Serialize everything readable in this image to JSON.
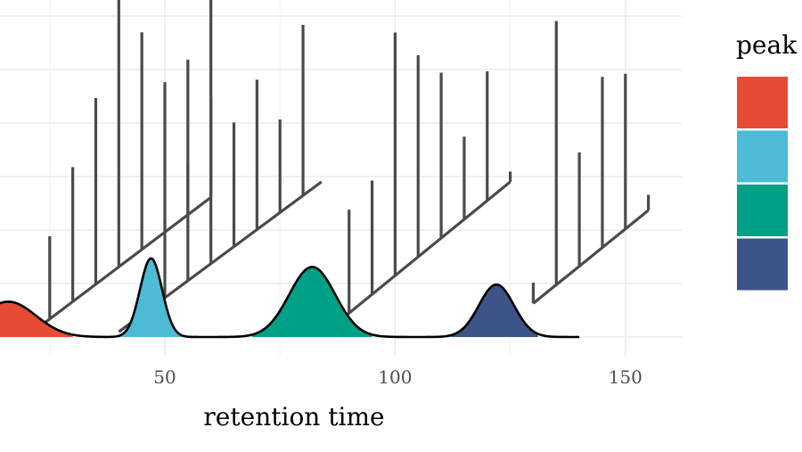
{
  "chart_data": {
    "type": "area",
    "xlabel": "retention time",
    "ylabel": "",
    "x_ticks": [
      50,
      100,
      150
    ],
    "xlim": [
      14,
      164
    ],
    "grid": true,
    "legend": {
      "title": "peak",
      "position": "right",
      "colors": [
        "#E64B35",
        "#4DBBD5",
        "#00A087",
        "#3C5488"
      ]
    },
    "series": [
      {
        "color": "#E64B35",
        "mean": 16,
        "sd": 6.0,
        "range": [
          10,
          30
        ],
        "height": 0.66
      },
      {
        "color": "#4DBBD5",
        "mean": 47,
        "sd": 2.4,
        "range": [
          40,
          54
        ],
        "height": 1.47
      },
      {
        "color": "#00A087",
        "mean": 82,
        "sd": 5.0,
        "range": [
          69,
          95
        ],
        "height": 1.31
      },
      {
        "color": "#3C5488",
        "mean": 122,
        "sd": 3.8,
        "range": [
          112,
          131
        ],
        "height": 0.98
      }
    ],
    "spectra": [
      {
        "start_time": 21,
        "end_time": 60,
        "base_height": 0.08,
        "end_height": 2.7,
        "offset_times": [
          21,
          25,
          30,
          35,
          40,
          45,
          50,
          55,
          60
        ],
        "peak_heights": [
          0.08,
          1.6,
          2.6,
          3.6,
          5.7,
          4.2,
          2.9,
          3.0,
          3.9
        ]
      },
      {
        "start_time": 40,
        "end_time": 84,
        "base_height": 0.1,
        "end_height": 3.0,
        "offset_times": [
          50,
          55,
          60,
          65,
          70,
          75,
          80,
          84
        ],
        "peak_heights": [
          1.5,
          2.3,
          3.2,
          2.4,
          2.9,
          1.8,
          3.3,
          0.0
        ]
      },
      {
        "start_time": 85,
        "end_time": 125,
        "base_height": 0.1,
        "end_height": 3.0,
        "offset_times": [
          90,
          95,
          100,
          105,
          110,
          115,
          120,
          125
        ],
        "peak_heights": [
          2.0,
          2.2,
          4.7,
          3.9,
          3.2,
          1.6,
          2.5,
          0.2
        ]
      },
      {
        "start_time": 130,
        "end_time": 155,
        "base_height": 0.65,
        "end_height": 2.45,
        "offset_times": [
          130,
          135,
          140,
          145,
          150,
          155
        ],
        "peak_heights": [
          0.4,
          5.1,
          2.2,
          3.3,
          3.0,
          0.3
        ]
      }
    ]
  }
}
